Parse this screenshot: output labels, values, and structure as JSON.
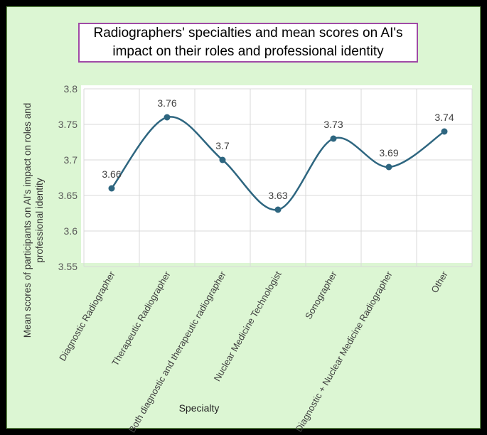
{
  "chart_data": {
    "type": "line",
    "title_lines": [
      "Radiographers' specialties and mean scores on AI's",
      "impact on their roles and professional identity"
    ],
    "xlabel": "Specialty",
    "ylabel_lines": [
      "Mean scores of participants on AI's impact on roles and",
      "professional identity"
    ],
    "categories": [
      "Diagnostic Radiographer",
      "Therapeutic Radiographer",
      "Both diagnostic and therapeutic radiographer",
      "Nuclear Medicine Technologist",
      "Sonographer",
      "Diagnostic + Nuclear Medicine Radiographer",
      "Other"
    ],
    "values": [
      3.66,
      3.76,
      3.7,
      3.63,
      3.73,
      3.69,
      3.74
    ],
    "data_labels": [
      "3.66",
      "3.76",
      "3.7",
      "3.63",
      "3.73",
      "3.69",
      "3.74"
    ],
    "ylim": [
      3.55,
      3.8
    ],
    "yticks": [
      "3.55",
      "3.6",
      "3.65",
      "3.7",
      "3.75",
      "3.8"
    ],
    "smooth": true,
    "grid": true,
    "line_color": "#2e6680",
    "background_color": "#dcf6d3",
    "title_border_color": "#a04aa6"
  }
}
